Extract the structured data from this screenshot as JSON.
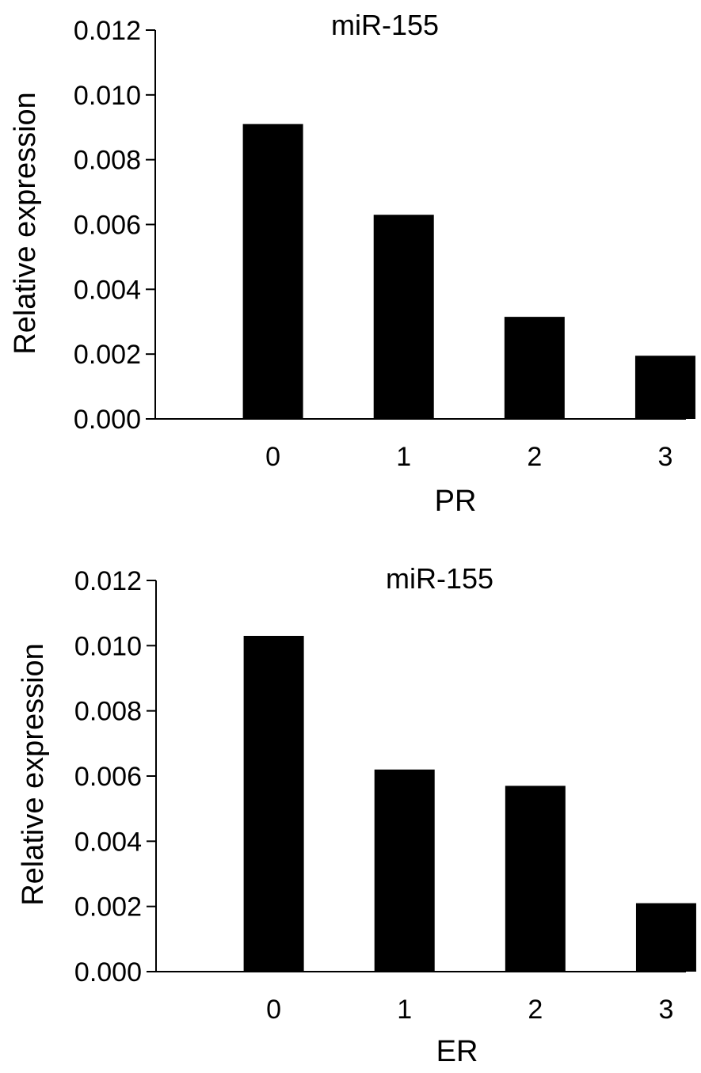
{
  "chart_data": [
    {
      "type": "bar",
      "title": "miR-155",
      "xlabel": "PR",
      "ylabel": "Relative expression",
      "categories": [
        "0",
        "1",
        "2",
        "3"
      ],
      "values": [
        0.0091,
        0.0063,
        0.00315,
        0.00195
      ],
      "ylim": [
        0,
        0.012
      ],
      "yticks": [
        "0.000",
        "0.002",
        "0.004",
        "0.006",
        "0.008",
        "0.010",
        "0.012"
      ],
      "bar_color": "#000000",
      "grid": false,
      "legend": "none"
    },
    {
      "type": "bar",
      "title": "miR-155",
      "xlabel": "ER",
      "ylabel": "Relative expression",
      "categories": [
        "0",
        "1",
        "2",
        "3"
      ],
      "values": [
        0.0103,
        0.0062,
        0.0057,
        0.0021
      ],
      "ylim": [
        0,
        0.012
      ],
      "yticks": [
        "0.000",
        "0.002",
        "0.004",
        "0.006",
        "0.008",
        "0.010",
        "0.012"
      ],
      "bar_color": "#000000",
      "grid": false,
      "legend": "none"
    }
  ]
}
